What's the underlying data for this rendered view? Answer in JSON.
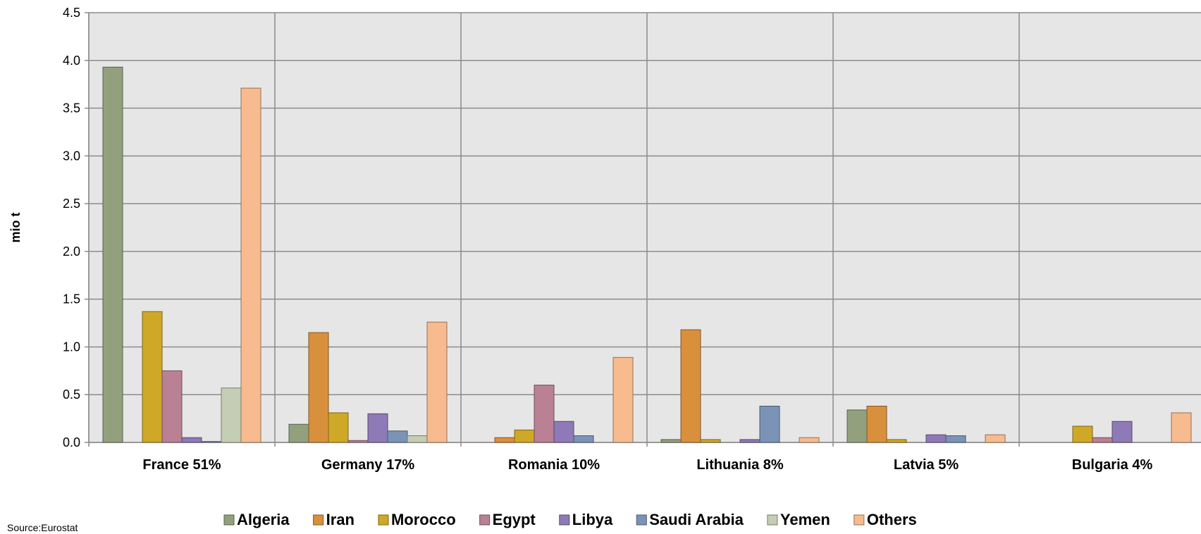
{
  "chart_data": {
    "type": "bar",
    "ylabel": "mio t",
    "ylim": [
      0,
      4.5
    ],
    "yticks": [
      "0.0",
      "0.5",
      "1.0",
      "1.5",
      "2.0",
      "2.5",
      "3.0",
      "3.5",
      "4.0",
      "4.5"
    ],
    "grid": true,
    "legend_position": "bottom",
    "categories": [
      "France 51%",
      "Germany 17%",
      "Romania 10%",
      "Lithuania 8%",
      "Latvia 5%",
      "Bulgaria 4%"
    ],
    "series": [
      {
        "name": "Algeria",
        "color": "#93a07e",
        "values": [
          3.93,
          0.19,
          0,
          0.03,
          0.34,
          0
        ]
      },
      {
        "name": "Iran",
        "color": "#d9903d",
        "values": [
          0,
          1.15,
          0.05,
          1.18,
          0.38,
          0
        ]
      },
      {
        "name": "Morocco",
        "color": "#cfa827",
        "values": [
          1.37,
          0.31,
          0.13,
          0.03,
          0.03,
          0.17
        ]
      },
      {
        "name": "Egypt",
        "color": "#b98193",
        "values": [
          0.75,
          0.02,
          0.6,
          0,
          0,
          0.05
        ]
      },
      {
        "name": "Libya",
        "color": "#8e7ab6",
        "values": [
          0.05,
          0.3,
          0.22,
          0.03,
          0.08,
          0.22
        ]
      },
      {
        "name": "Saudi Arabia",
        "color": "#7b93b6",
        "values": [
          0.01,
          0.12,
          0.07,
          0.38,
          0.07,
          0
        ]
      },
      {
        "name": "Yemen",
        "color": "#c5cdb4",
        "values": [
          0.57,
          0.07,
          0,
          0,
          0,
          0
        ]
      },
      {
        "name": "Others",
        "color": "#f7bb8f",
        "values": [
          3.71,
          1.26,
          0.89,
          0.05,
          0.08,
          0.31
        ]
      }
    ],
    "source": "Source:Eurostat"
  }
}
